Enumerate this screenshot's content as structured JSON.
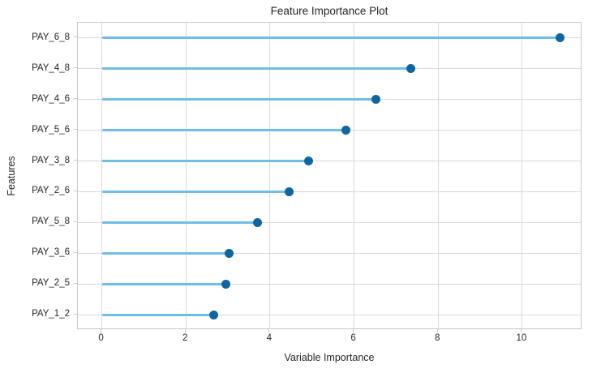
{
  "chart_data": {
    "type": "bar",
    "style": "lollipop",
    "orientation": "horizontal",
    "title": "Feature Importance Plot",
    "xlabel": "Variable Importance",
    "ylabel": "Features",
    "categories": [
      "PAY_6_8",
      "PAY_4_8",
      "PAY_4_6",
      "PAY_5_6",
      "PAY_3_8",
      "PAY_2_6",
      "PAY_5_8",
      "PAY_3_6",
      "PAY_2_5",
      "PAY_1_2"
    ],
    "values": [
      10.89,
      7.35,
      6.52,
      5.8,
      4.92,
      4.45,
      3.71,
      3.03,
      2.96,
      2.67
    ],
    "xlim": [
      -0.57,
      11.43
    ],
    "xticks": [
      0,
      2,
      4,
      6,
      8,
      10
    ],
    "xtick_labels": [
      "0",
      "2",
      "4",
      "6",
      "8",
      "10"
    ],
    "grid": true,
    "legend": false,
    "colors": {
      "stem": "#6fbde9",
      "dot": "#0f659e",
      "grid": "#d9d9d9",
      "frame": "#c8c8c8",
      "text": "#262626",
      "background": "#ffffff"
    }
  }
}
